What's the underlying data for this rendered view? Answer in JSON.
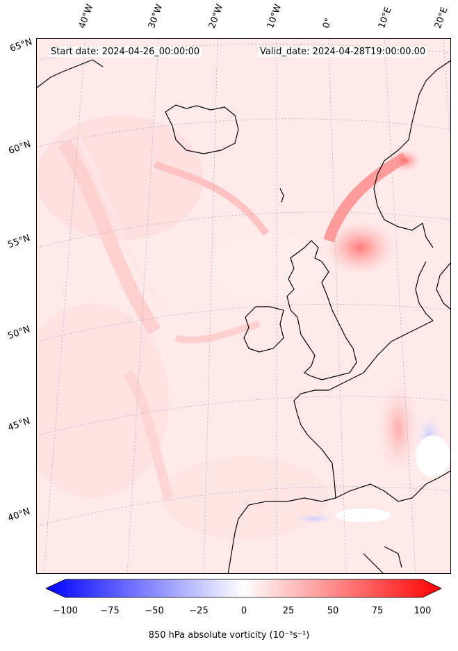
{
  "header": {
    "start_date": "Start date: 2024-04-26_00:00:00",
    "valid_date": "Valid_date: 2024-04-28T19:00:00.00"
  },
  "longitude_labels": [
    "40°W",
    "30°W",
    "20°W",
    "10°W",
    "0°",
    "10°E",
    "20°E"
  ],
  "latitude_labels": [
    "65°N",
    "60°N",
    "55°N",
    "50°N",
    "45°N",
    "40°N"
  ],
  "colorbar": {
    "title": "850 hPa absolute vorticity (10⁻⁵s⁻¹)",
    "ticks": [
      "−100",
      "−75",
      "−50",
      "−25",
      "0",
      "25",
      "50",
      "75",
      "100"
    ],
    "min_color": "#0000ff",
    "mid_color": "#ffffff",
    "max_color": "#ff0000"
  }
}
